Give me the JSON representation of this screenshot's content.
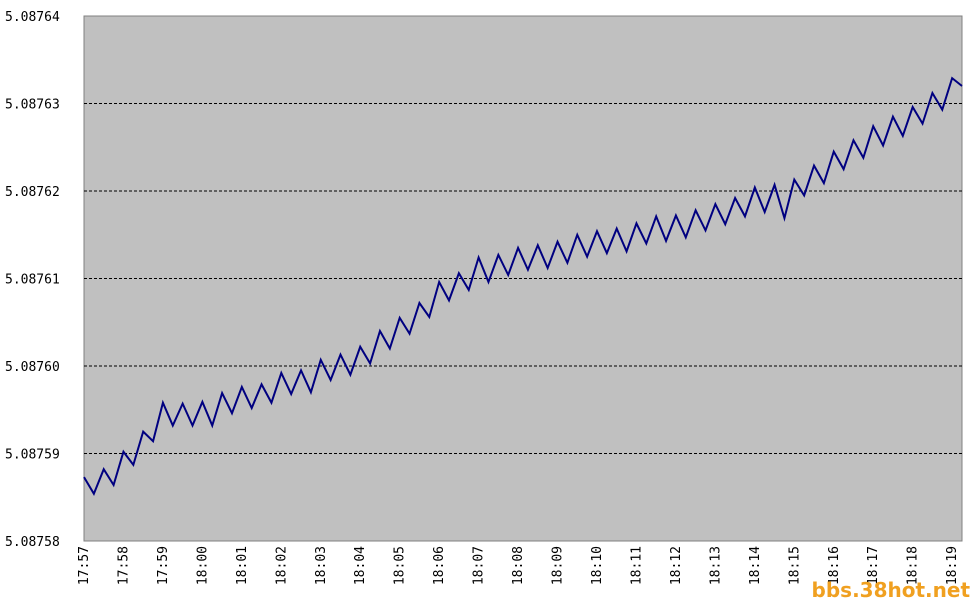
{
  "chart_data": {
    "type": "line",
    "categories": [
      "17:57",
      null,
      null,
      null,
      "17:58",
      null,
      null,
      null,
      "17:59",
      null,
      null,
      null,
      "18:00",
      null,
      null,
      null,
      "18:01",
      null,
      null,
      null,
      "18:02",
      null,
      null,
      null,
      "18:03",
      null,
      null,
      null,
      "18:04",
      null,
      null,
      null,
      "18:05",
      null,
      null,
      null,
      "18:06",
      null,
      null,
      null,
      "18:07",
      null,
      null,
      null,
      "18:08",
      null,
      null,
      null,
      "18:09",
      null,
      null,
      null,
      "18:10",
      null,
      null,
      null,
      "18:11",
      null,
      null,
      null,
      "18:12",
      null,
      null,
      null,
      "18:13",
      null,
      null,
      null,
      "18:14",
      null,
      null,
      null,
      "18:15",
      null,
      null,
      null,
      "18:16",
      null,
      null,
      null,
      "18:17",
      null,
      null,
      null,
      "18:18",
      null,
      null,
      null,
      "18:19",
      null
    ],
    "values": [
      5.0875873,
      5.0875854,
      5.0875882,
      5.0875864,
      5.0875902,
      5.0875887,
      5.0875925,
      5.0875914,
      5.0875958,
      5.0875932,
      5.0875957,
      5.0875932,
      5.0875959,
      5.0875932,
      5.0875969,
      5.0875946,
      5.0875976,
      5.0875952,
      5.0875979,
      5.0875958,
      5.0875992,
      5.0875968,
      5.0875995,
      5.087597,
      5.0876007,
      5.0875984,
      5.0876013,
      5.087599,
      5.0876022,
      5.0876003,
      5.087604,
      5.087602,
      5.0876055,
      5.0876037,
      5.0876072,
      5.0876056,
      5.0876096,
      5.0876075,
      5.0876106,
      5.0876087,
      5.0876124,
      5.0876096,
      5.0876127,
      5.0876104,
      5.0876135,
      5.087611,
      5.0876138,
      5.0876112,
      5.0876142,
      5.0876118,
      5.087615,
      5.0876125,
      5.0876154,
      5.0876129,
      5.0876157,
      5.0876131,
      5.0876163,
      5.087614,
      5.0876171,
      5.0876143,
      5.0876172,
      5.0876147,
      5.0876178,
      5.0876155,
      5.0876185,
      5.0876162,
      5.0876192,
      5.0876171,
      5.0876204,
      5.0876176,
      5.0876207,
      5.0876169,
      5.0876213,
      5.0876195,
      5.0876229,
      5.0876209,
      5.0876245,
      5.0876225,
      5.0876258,
      5.0876238,
      5.0876274,
      5.0876252,
      5.0876285,
      5.0876263,
      5.0876296,
      5.0876277,
      5.0876312,
      5.0876293,
      5.0876329,
      5.087632
    ],
    "color": "#000080",
    "ylim": [
      5.08758,
      5.08764
    ],
    "yticks": [
      5.08758,
      5.08759,
      {
        "value": 5.0876,
        "label": "5.08760"
      },
      5.08761,
      5.08762,
      5.08763,
      5.08764
    ],
    "grid": true,
    "watermark": "bbs.38hot.net"
  }
}
